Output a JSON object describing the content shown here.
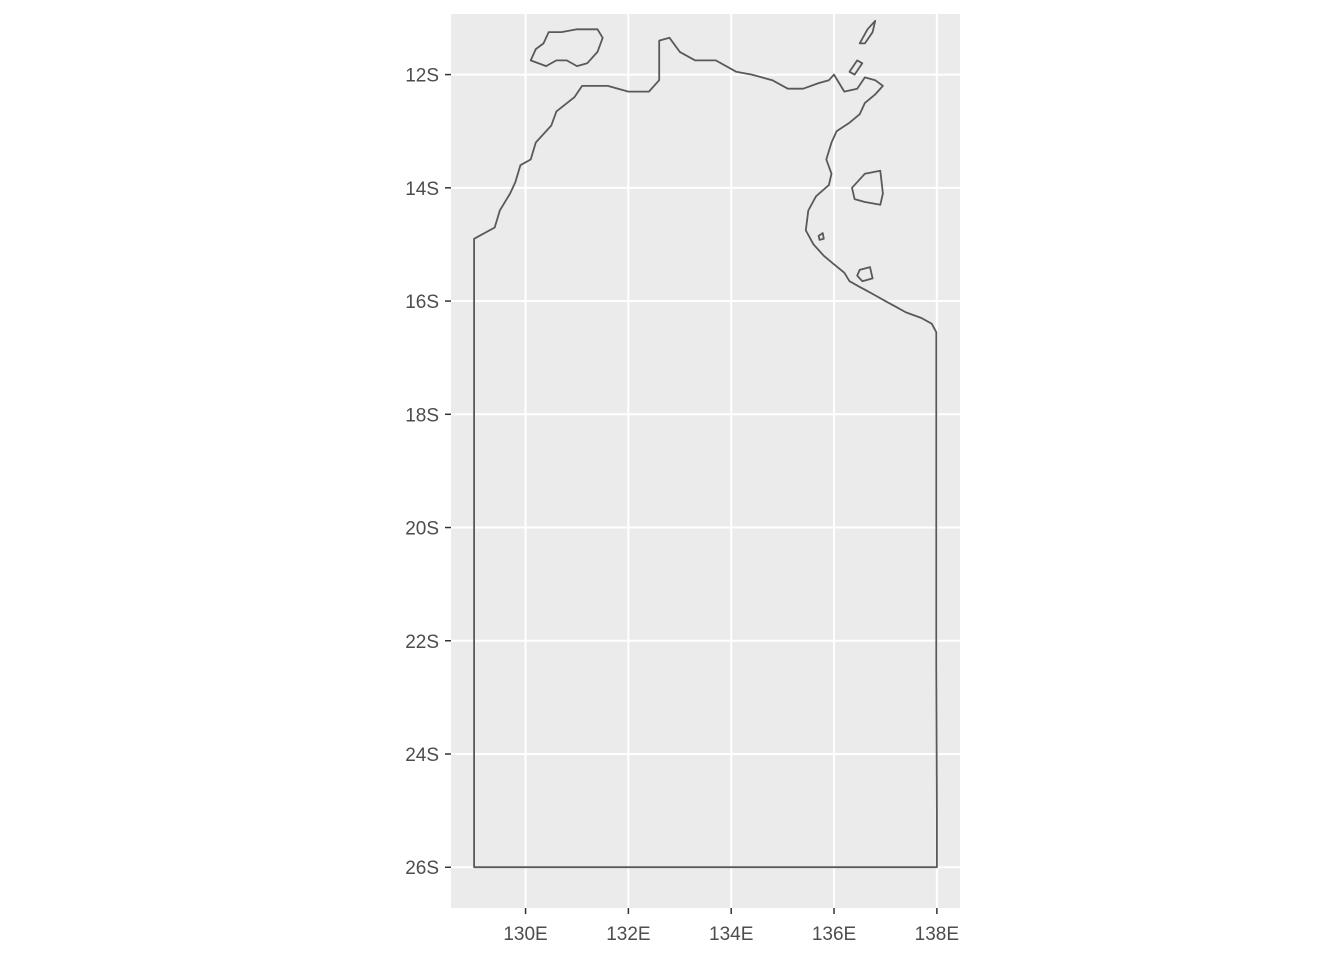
{
  "chart_data": {
    "type": "map",
    "title": "",
    "xlabel": "",
    "ylabel": "",
    "x_range": [
      128.55,
      138.45
    ],
    "y_range": [
      -26.72,
      -10.93
    ],
    "x_ticks": [
      {
        "value": 130,
        "label": "130E"
      },
      {
        "value": 132,
        "label": "132E"
      },
      {
        "value": 134,
        "label": "134E"
      },
      {
        "value": 136,
        "label": "136E"
      },
      {
        "value": 138,
        "label": "138E"
      }
    ],
    "y_ticks": [
      {
        "value": -12,
        "label": "12S"
      },
      {
        "value": -14,
        "label": "14S"
      },
      {
        "value": -16,
        "label": "16S"
      },
      {
        "value": -18,
        "label": "18S"
      },
      {
        "value": -20,
        "label": "20S"
      },
      {
        "value": -22,
        "label": "22S"
      },
      {
        "value": -24,
        "label": "24S"
      },
      {
        "value": -26,
        "label": "26S"
      }
    ],
    "grid": true,
    "colors": {
      "panel_background": "#ebebeb",
      "grid_line": "#ffffff",
      "outline": "#595959",
      "tick_text": "#4d4d4d",
      "tick_mark": "#333333"
    },
    "features": [
      {
        "kind": "mainland",
        "coords": [
          [
            129.0,
            -26.0
          ],
          [
            138.0,
            -26.0
          ],
          [
            138.0,
            -25.0
          ],
          [
            137.99,
            -22.4
          ],
          [
            137.99,
            -16.55
          ],
          [
            137.9,
            -16.4
          ],
          [
            137.7,
            -16.3
          ],
          [
            137.4,
            -16.2
          ],
          [
            137.2,
            -16.1
          ],
          [
            137.0,
            -16.0
          ],
          [
            136.8,
            -15.9
          ],
          [
            136.6,
            -15.8
          ],
          [
            136.5,
            -15.75
          ],
          [
            136.3,
            -15.65
          ],
          [
            136.2,
            -15.5
          ],
          [
            136.0,
            -15.35
          ],
          [
            135.8,
            -15.2
          ],
          [
            135.6,
            -15.0
          ],
          [
            135.45,
            -14.75
          ],
          [
            135.5,
            -14.4
          ],
          [
            135.65,
            -14.15
          ],
          [
            135.9,
            -13.95
          ],
          [
            135.95,
            -13.75
          ],
          [
            135.85,
            -13.5
          ],
          [
            135.95,
            -13.2
          ],
          [
            136.05,
            -13.0
          ],
          [
            136.3,
            -12.85
          ],
          [
            136.5,
            -12.7
          ],
          [
            136.6,
            -12.5
          ],
          [
            136.8,
            -12.35
          ],
          [
            136.95,
            -12.2
          ],
          [
            136.8,
            -12.1
          ],
          [
            136.6,
            -12.05
          ],
          [
            136.45,
            -12.25
          ],
          [
            136.2,
            -12.3
          ],
          [
            136.0,
            -12.0
          ],
          [
            135.9,
            -12.1
          ],
          [
            135.7,
            -12.15
          ],
          [
            135.4,
            -12.25
          ],
          [
            135.1,
            -12.25
          ],
          [
            134.8,
            -12.1
          ],
          [
            134.4,
            -12.0
          ],
          [
            134.1,
            -11.95
          ],
          [
            133.7,
            -11.75
          ],
          [
            133.3,
            -11.75
          ],
          [
            133.0,
            -11.6
          ],
          [
            132.8,
            -11.35
          ],
          [
            132.6,
            -11.4
          ],
          [
            132.6,
            -11.65
          ],
          [
            132.6,
            -12.1
          ],
          [
            132.4,
            -12.3
          ],
          [
            132.0,
            -12.3
          ],
          [
            131.6,
            -12.2
          ],
          [
            131.1,
            -12.2
          ],
          [
            130.95,
            -12.4
          ],
          [
            130.6,
            -12.65
          ],
          [
            130.5,
            -12.9
          ],
          [
            130.2,
            -13.2
          ],
          [
            130.1,
            -13.5
          ],
          [
            129.9,
            -13.6
          ],
          [
            129.8,
            -13.9
          ],
          [
            129.7,
            -14.1
          ],
          [
            129.5,
            -14.4
          ],
          [
            129.4,
            -14.7
          ],
          [
            129.1,
            -14.85
          ],
          [
            129.0,
            -14.9
          ],
          [
            129.0,
            -26.0
          ]
        ]
      },
      {
        "kind": "island",
        "name_visible": false,
        "coords": [
          [
            130.35,
            -11.45
          ],
          [
            130.45,
            -11.25
          ],
          [
            130.7,
            -11.25
          ],
          [
            131.0,
            -11.2
          ],
          [
            131.4,
            -11.2
          ],
          [
            131.5,
            -11.35
          ],
          [
            131.4,
            -11.6
          ],
          [
            131.2,
            -11.8
          ],
          [
            131.0,
            -11.85
          ],
          [
            130.8,
            -11.75
          ],
          [
            130.6,
            -11.75
          ],
          [
            130.4,
            -11.85
          ],
          [
            130.1,
            -11.75
          ],
          [
            130.2,
            -11.55
          ],
          [
            130.35,
            -11.45
          ]
        ]
      },
      {
        "kind": "island",
        "name_visible": false,
        "coords": [
          [
            136.6,
            -13.75
          ],
          [
            136.9,
            -13.7
          ],
          [
            136.95,
            -14.1
          ],
          [
            136.9,
            -14.3
          ],
          [
            136.6,
            -14.25
          ],
          [
            136.4,
            -14.2
          ],
          [
            136.35,
            -14.0
          ],
          [
            136.6,
            -13.75
          ]
        ]
      },
      {
        "kind": "island",
        "name_visible": false,
        "coords": [
          [
            136.5,
            -11.45
          ],
          [
            136.65,
            -11.2
          ],
          [
            136.8,
            -11.05
          ],
          [
            136.75,
            -11.25
          ],
          [
            136.6,
            -11.45
          ],
          [
            136.5,
            -11.45
          ]
        ]
      },
      {
        "kind": "island",
        "name_visible": false,
        "coords": [
          [
            136.3,
            -11.95
          ],
          [
            136.45,
            -11.75
          ],
          [
            136.55,
            -11.8
          ],
          [
            136.4,
            -12.0
          ],
          [
            136.3,
            -11.95
          ]
        ]
      },
      {
        "kind": "island",
        "name_visible": false,
        "coords": [
          [
            135.7,
            -14.85
          ],
          [
            135.78,
            -14.8
          ],
          [
            135.8,
            -14.9
          ],
          [
            135.72,
            -14.92
          ],
          [
            135.7,
            -14.85
          ]
        ]
      },
      {
        "kind": "island",
        "name_visible": false,
        "coords": [
          [
            136.5,
            -15.45
          ],
          [
            136.7,
            -15.4
          ],
          [
            136.75,
            -15.6
          ],
          [
            136.55,
            -15.65
          ],
          [
            136.45,
            -15.55
          ],
          [
            136.5,
            -15.45
          ]
        ]
      }
    ]
  }
}
